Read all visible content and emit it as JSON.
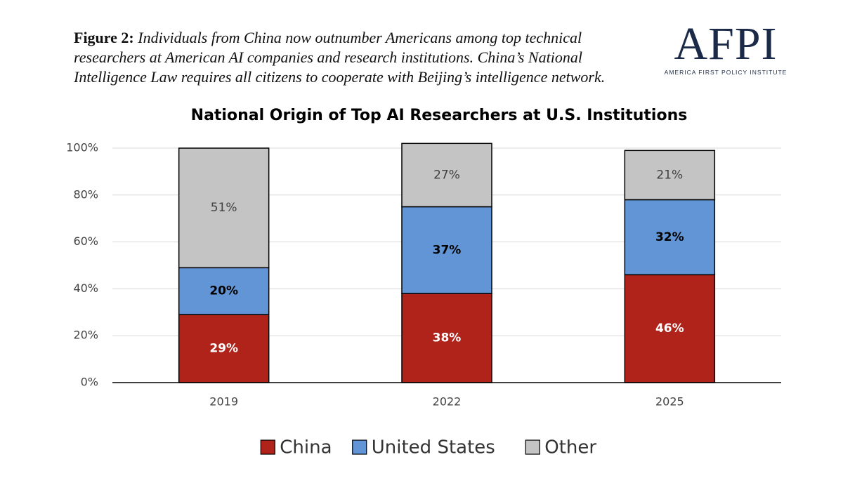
{
  "caption": {
    "label": "Figure 2:",
    "text": "Individuals from China now outnumber Americans among top technical researchers at American AI companies and research institutions. China’s National Intelligence Law requires all citizens to cooperate with Beijing’s intelligence network."
  },
  "logo": {
    "name": "AFPI",
    "tagline": "AMERICA FIRST POLICY INSTITUTE"
  },
  "chart_data": {
    "type": "stacked_bar",
    "title": "National Origin of Top AI Researchers at U.S. Institutions",
    "categories": [
      "2019",
      "2022",
      "2025"
    ],
    "series": [
      {
        "name": "China",
        "color": "#b0231a",
        "label_color": "#ffffff",
        "values": [
          29,
          38,
          46
        ],
        "value_labels": [
          "29%",
          "38%",
          "46%"
        ]
      },
      {
        "name": "United States",
        "color": "#6195d6",
        "label_color": "#000000",
        "values": [
          20,
          37,
          32
        ],
        "value_labels": [
          "20%",
          "37%",
          "32%"
        ]
      },
      {
        "name": "Other",
        "color": "#c4c4c4",
        "label_color": "#404040",
        "values": [
          51,
          27,
          21
        ],
        "value_labels": [
          "51%",
          "27%",
          "21%"
        ]
      }
    ],
    "ylim": [
      0,
      100
    ],
    "yticks": [
      {
        "value": 0,
        "label": "0%"
      },
      {
        "value": 20,
        "label": "20%"
      },
      {
        "value": 40,
        "label": "40%"
      },
      {
        "value": 60,
        "label": "60%"
      },
      {
        "value": 80,
        "label": "80%"
      },
      {
        "value": 100,
        "label": "100%"
      }
    ],
    "grid": true,
    "legend": "bottom"
  }
}
